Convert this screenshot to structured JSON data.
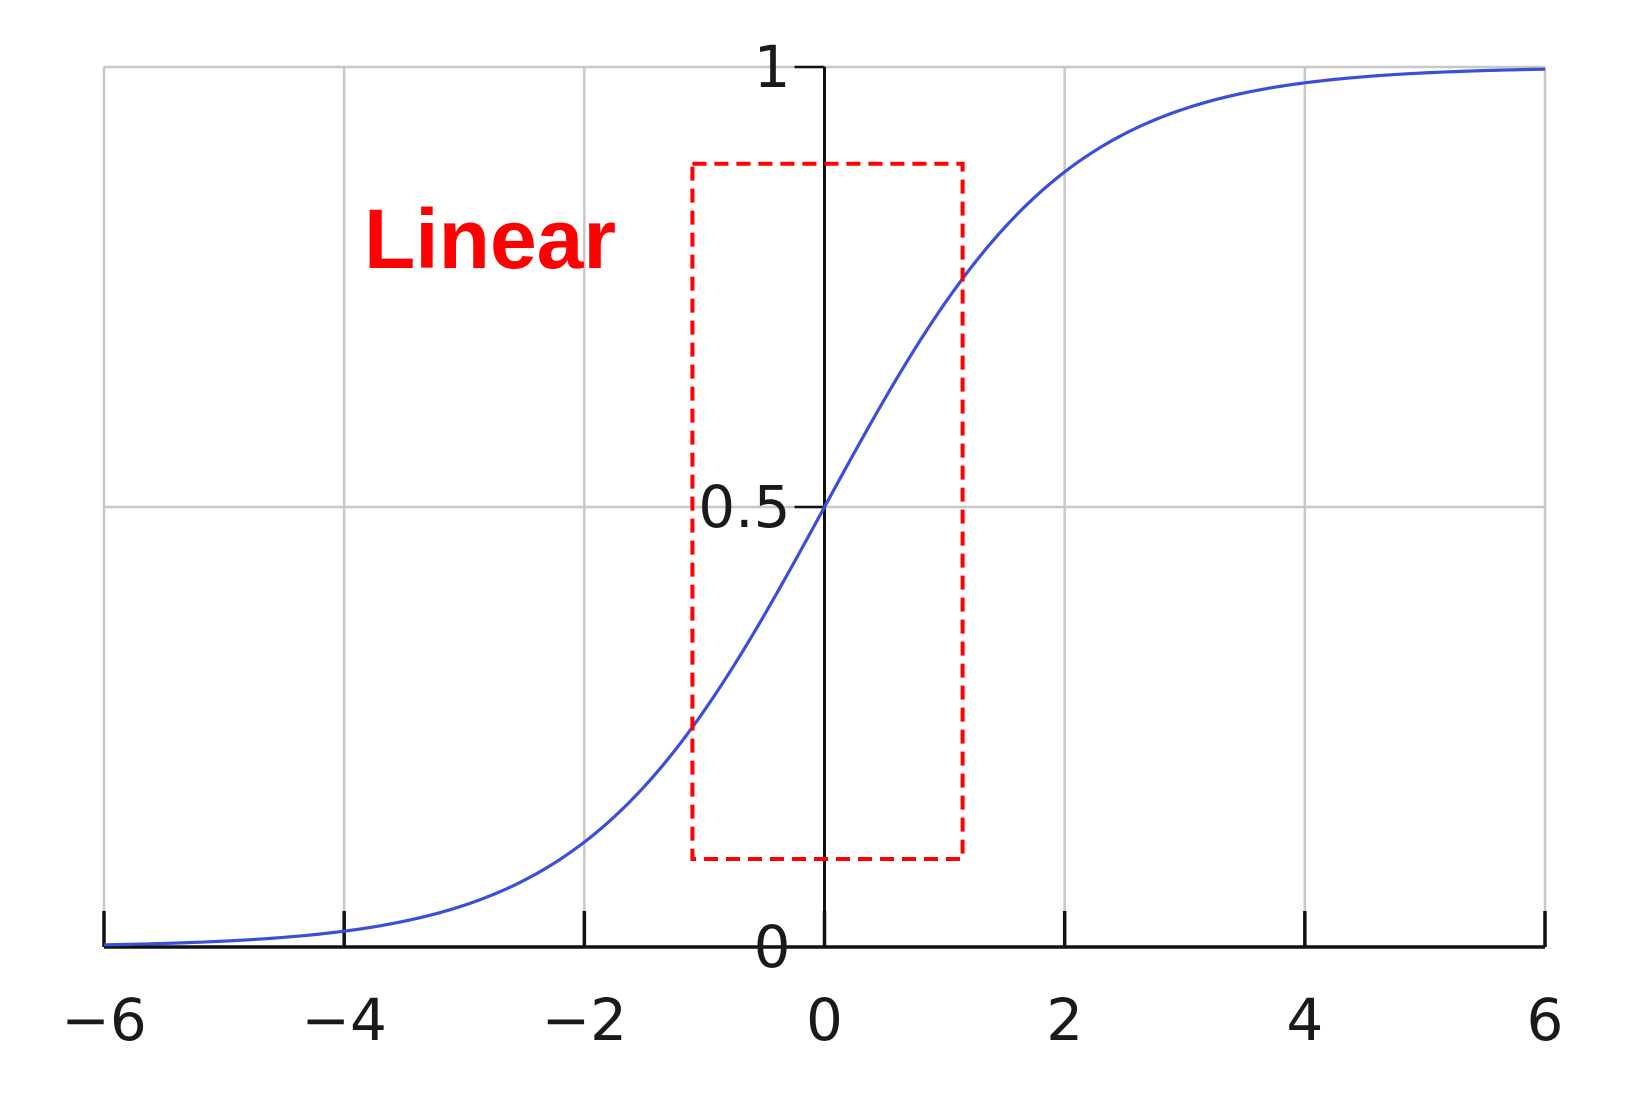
{
  "chart_data": {
    "type": "line",
    "title": "",
    "xlabel": "",
    "ylabel": "",
    "xlim": [
      -6,
      6
    ],
    "ylim": [
      0,
      1
    ],
    "x_ticks": [
      -6,
      -4,
      -2,
      0,
      2,
      4,
      6
    ],
    "x_tick_labels": [
      "−6",
      "−4",
      "−2",
      "0",
      "2",
      "4",
      "6"
    ],
    "y_ticks": [
      0,
      0.5,
      1
    ],
    "y_tick_labels": [
      "0",
      "0.5",
      "1"
    ],
    "grid": true,
    "function": "sigmoid",
    "series": [
      {
        "color": "#3b4fd8",
        "x": [
          -6,
          -5.5,
          -5,
          -4.5,
          -4,
          -3.5,
          -3,
          -2.5,
          -2,
          -1.5,
          -1,
          -0.5,
          0,
          0.5,
          1,
          1.5,
          2,
          2.5,
          3,
          3.5,
          4,
          4.5,
          5,
          5.5,
          6
        ],
        "y": [
          0.0025,
          0.0041,
          0.0067,
          0.011,
          0.018,
          0.029,
          0.047,
          0.076,
          0.119,
          0.182,
          0.269,
          0.378,
          0.5,
          0.622,
          0.731,
          0.818,
          0.881,
          0.924,
          0.953,
          0.971,
          0.982,
          0.989,
          0.9933,
          0.9959,
          0.9975
        ]
      }
    ],
    "annotations": [
      {
        "text": "Linear",
        "color": "#ff0000",
        "region_x": [
          -1.1,
          1.15
        ],
        "region_y": [
          0.1,
          0.89
        ],
        "style": "dashed-rectangle"
      }
    ]
  },
  "colors": {
    "grid": "#c8c8c8",
    "axis": "#111111",
    "curve": "#3b4fd8",
    "annotation": "#ff0000"
  }
}
